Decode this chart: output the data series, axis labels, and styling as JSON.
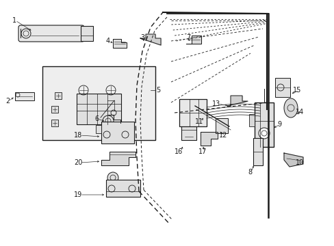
{
  "background_color": "#ffffff",
  "line_color": "#1a1a1a",
  "fig_width": 4.89,
  "fig_height": 3.6,
  "dpi": 100,
  "label_fontsize": 7.0,
  "lw": 0.7
}
